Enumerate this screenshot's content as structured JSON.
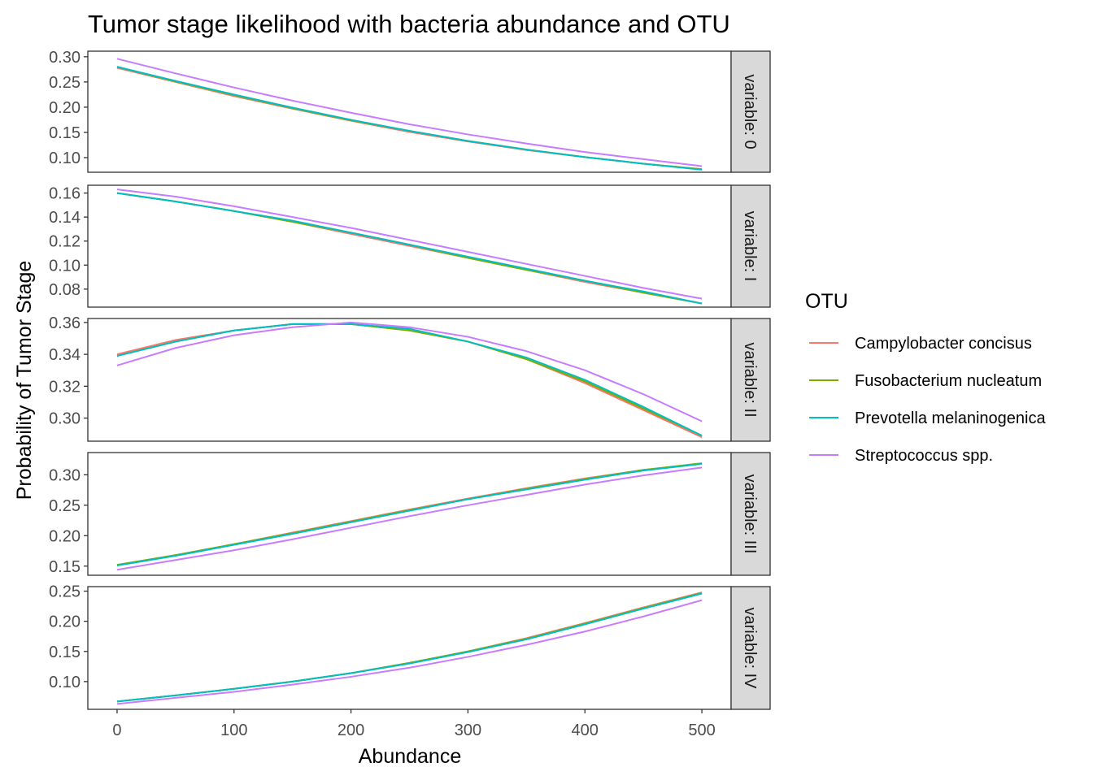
{
  "chart_data": {
    "type": "line",
    "title": "Tumor stage likelihood with bacteria abundance and OTU",
    "xlabel": "Abundance",
    "ylabel": "Probability of Tumor Stage",
    "xlim": [
      -25,
      525
    ],
    "x_ticks": [
      0,
      100,
      200,
      300,
      400,
      500
    ],
    "legend": {
      "title": "OTU",
      "position": "right"
    },
    "grid": false,
    "series_colors": {
      "Campylobacter concisus": "#F8766D",
      "Fusobacterium nucleatum": "#7CAE00",
      "Prevotella melaninogenica": "#00BFC4",
      "Streptococcus spp.": "#C77CFF"
    },
    "x": [
      0,
      50,
      100,
      150,
      200,
      250,
      300,
      350,
      400,
      450,
      500
    ],
    "facets": [
      {
        "strip": "variable: 0",
        "ylim": [
          0.071,
          0.311
        ],
        "y_ticks": [
          0.1,
          0.15,
          0.2,
          0.25,
          0.3
        ],
        "y_tick_labels": [
          "0.10",
          "0.15",
          "0.20",
          "0.25",
          "0.30"
        ],
        "series": [
          {
            "name": "Campylobacter concisus",
            "values": [
              0.278,
              0.25,
              0.222,
              0.197,
              0.173,
              0.151,
              0.132,
              0.115,
              0.101,
              0.088,
              0.077
            ]
          },
          {
            "name": "Fusobacterium nucleatum",
            "values": [
              0.28,
              0.251,
              0.224,
              0.198,
              0.174,
              0.153,
              0.133,
              0.116,
              0.101,
              0.088,
              0.077
            ]
          },
          {
            "name": "Prevotella melaninogenica",
            "values": [
              0.28,
              0.252,
              0.225,
              0.199,
              0.175,
              0.153,
              0.133,
              0.116,
              0.101,
              0.088,
              0.076
            ]
          },
          {
            "name": "Streptococcus spp.",
            "values": [
              0.296,
              0.267,
              0.239,
              0.213,
              0.189,
              0.166,
              0.146,
              0.128,
              0.111,
              0.097,
              0.083
            ]
          }
        ]
      },
      {
        "strip": "variable: I",
        "ylim": [
          0.065,
          0.1665
        ],
        "y_ticks": [
          0.08,
          0.1,
          0.12,
          0.14,
          0.16
        ],
        "y_tick_labels": [
          "0.08",
          "0.10",
          "0.12",
          "0.14",
          "0.16"
        ],
        "series": [
          {
            "name": "Campylobacter concisus",
            "values": [
              0.16,
              0.153,
              0.145,
              0.136,
              0.126,
              0.116,
              0.106,
              0.096,
              0.086,
              0.077,
              0.068
            ]
          },
          {
            "name": "Fusobacterium nucleatum",
            "values": [
              0.16,
              0.153,
              0.145,
              0.136,
              0.127,
              0.117,
              0.106,
              0.096,
              0.087,
              0.077,
              0.068
            ]
          },
          {
            "name": "Prevotella melaninogenica",
            "values": [
              0.16,
              0.153,
              0.145,
              0.137,
              0.127,
              0.117,
              0.107,
              0.097,
              0.087,
              0.078,
              0.068
            ]
          },
          {
            "name": "Streptococcus spp.",
            "values": [
              0.163,
              0.157,
              0.149,
              0.14,
              0.131,
              0.121,
              0.111,
              0.101,
              0.091,
              0.081,
              0.072
            ]
          }
        ]
      },
      {
        "strip": "variable: II",
        "ylim": [
          0.2855,
          0.3625
        ],
        "y_ticks": [
          0.3,
          0.32,
          0.34,
          0.36
        ],
        "y_tick_labels": [
          "0.30",
          "0.32",
          "0.34",
          "0.36"
        ],
        "series": [
          {
            "name": "Campylobacter concisus",
            "values": [
              0.34,
              0.349,
              0.355,
              0.359,
              0.359,
              0.355,
              0.348,
              0.337,
              0.322,
              0.305,
              0.288
            ]
          },
          {
            "name": "Fusobacterium nucleatum",
            "values": [
              0.339,
              0.348,
              0.355,
              0.359,
              0.359,
              0.355,
              0.348,
              0.337,
              0.323,
              0.306,
              0.289
            ]
          },
          {
            "name": "Prevotella melaninogenica",
            "values": [
              0.339,
              0.348,
              0.355,
              0.359,
              0.359,
              0.356,
              0.348,
              0.338,
              0.324,
              0.307,
              0.289
            ]
          },
          {
            "name": "Streptococcus spp.",
            "values": [
              0.333,
              0.344,
              0.352,
              0.357,
              0.36,
              0.357,
              0.351,
              0.342,
              0.33,
              0.315,
              0.298
            ]
          }
        ]
      },
      {
        "strip": "variable: III",
        "ylim": [
          0.135,
          0.3365
        ],
        "y_ticks": [
          0.15,
          0.2,
          0.25,
          0.3
        ],
        "y_tick_labels": [
          "0.15",
          "0.20",
          "0.25",
          "0.30"
        ],
        "series": [
          {
            "name": "Campylobacter concisus",
            "values": [
              0.152,
              0.168,
              0.186,
              0.205,
              0.224,
              0.243,
              0.261,
              0.278,
              0.294,
              0.308,
              0.318
            ]
          },
          {
            "name": "Fusobacterium nucleatum",
            "values": [
              0.152,
              0.168,
              0.186,
              0.204,
              0.223,
              0.242,
              0.26,
              0.277,
              0.293,
              0.308,
              0.319
            ]
          },
          {
            "name": "Prevotella melaninogenica",
            "values": [
              0.151,
              0.167,
              0.185,
              0.203,
              0.222,
              0.241,
              0.26,
              0.276,
              0.292,
              0.307,
              0.318
            ]
          },
          {
            "name": "Streptococcus spp.",
            "values": [
              0.144,
              0.16,
              0.176,
              0.194,
              0.213,
              0.232,
              0.25,
              0.267,
              0.284,
              0.299,
              0.312
            ]
          }
        ]
      },
      {
        "strip": "variable: IV",
        "ylim": [
          0.054,
          0.2575
        ],
        "y_ticks": [
          0.1,
          0.15,
          0.2,
          0.25
        ],
        "y_tick_labels": [
          "0.10",
          "0.15",
          "0.20",
          "0.25"
        ],
        "series": [
          {
            "name": "Campylobacter concisus",
            "values": [
              0.067,
              0.077,
              0.088,
              0.1,
              0.114,
              0.131,
              0.15,
              0.172,
              0.197,
              0.223,
              0.248
            ]
          },
          {
            "name": "Fusobacterium nucleatum",
            "values": [
              0.067,
              0.077,
              0.088,
              0.1,
              0.114,
              0.131,
              0.15,
              0.171,
              0.196,
              0.222,
              0.247
            ]
          },
          {
            "name": "Prevotella melaninogenica",
            "values": [
              0.067,
              0.077,
              0.088,
              0.1,
              0.114,
              0.13,
              0.149,
              0.17,
              0.195,
              0.221,
              0.246
            ]
          },
          {
            "name": "Streptococcus spp.",
            "values": [
              0.063,
              0.073,
              0.083,
              0.095,
              0.108,
              0.123,
              0.141,
              0.161,
              0.183,
              0.208,
              0.235
            ]
          }
        ]
      }
    ]
  }
}
